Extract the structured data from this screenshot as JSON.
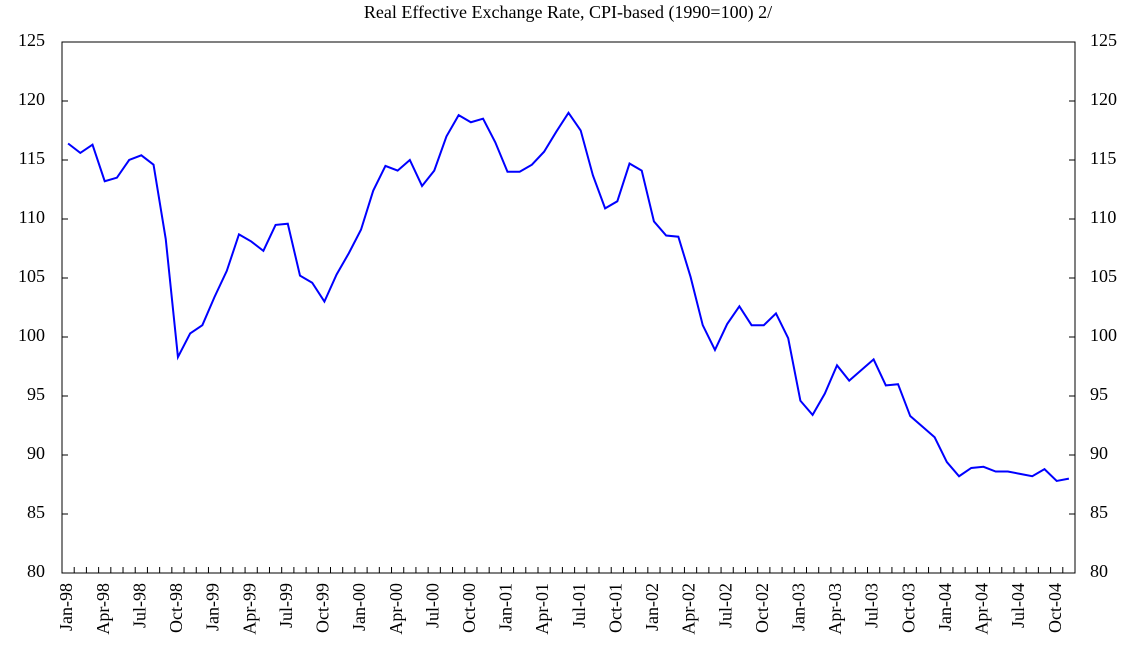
{
  "chart_data": {
    "type": "line",
    "title": "Real Effective Exchange Rate, CPI-based (1990=100) 2/",
    "categories": [
      "Jan-98",
      null,
      null,
      "Apr-98",
      null,
      null,
      "Jul-98",
      null,
      null,
      "Oct-98",
      null,
      null,
      "Jan-99",
      null,
      null,
      "Apr-99",
      null,
      null,
      "Jul-99",
      null,
      null,
      "Oct-99",
      null,
      null,
      "Jan-00",
      null,
      null,
      "Apr-00",
      null,
      null,
      "Jul-00",
      null,
      null,
      "Oct-00",
      null,
      null,
      "Jan-01",
      null,
      null,
      "Apr-01",
      null,
      null,
      "Jul-01",
      null,
      null,
      "Oct-01",
      null,
      null,
      "Jan-02",
      null,
      null,
      "Apr-02",
      null,
      null,
      "Jul-02",
      null,
      null,
      "Oct-02",
      null,
      null,
      "Jan-03",
      null,
      null,
      "Apr-03",
      null,
      null,
      "Jul-03",
      null,
      null,
      "Oct-03",
      null,
      null,
      "Jan-04",
      null,
      null,
      "Apr-04",
      null,
      null,
      "Jul-04",
      null,
      null,
      "Oct-04",
      null
    ],
    "series": [
      {
        "color": "#0000ff",
        "values": [
          116.4,
          115.6,
          116.3,
          113.2,
          113.5,
          115.0,
          115.4,
          114.6,
          108.3,
          98.3,
          100.3,
          101.0,
          103.4,
          105.6,
          108.7,
          108.1,
          107.3,
          109.5,
          109.6,
          105.2,
          104.6,
          103.0,
          105.3,
          107.1,
          109.1,
          112.4,
          114.5,
          114.1,
          115.0,
          112.8,
          114.1,
          117.0,
          118.8,
          118.2,
          118.5,
          116.5,
          114.0,
          114.0,
          114.6,
          115.7,
          117.4,
          119.0,
          117.5,
          113.7,
          110.9,
          111.5,
          114.7,
          114.1,
          109.8,
          108.6,
          108.5,
          105.1,
          101.0,
          98.9,
          101.1,
          102.6,
          101.0,
          101.0,
          102.0,
          99.9,
          94.6,
          93.4,
          95.2,
          97.6,
          96.3,
          97.2,
          98.1,
          95.9,
          96.0,
          93.3,
          92.4,
          91.5,
          89.4,
          88.2,
          88.9,
          89.0,
          88.6,
          88.6,
          88.4,
          88.2,
          88.8,
          87.8,
          88.0
        ]
      }
    ],
    "ylim": [
      80,
      125
    ],
    "yticks": [
      80,
      85,
      90,
      95,
      100,
      105,
      110,
      115,
      120,
      125
    ],
    "y2lim": [
      80,
      125
    ],
    "y2ticks": [
      80,
      85,
      90,
      95,
      100,
      105,
      110,
      115,
      120,
      125
    ]
  }
}
